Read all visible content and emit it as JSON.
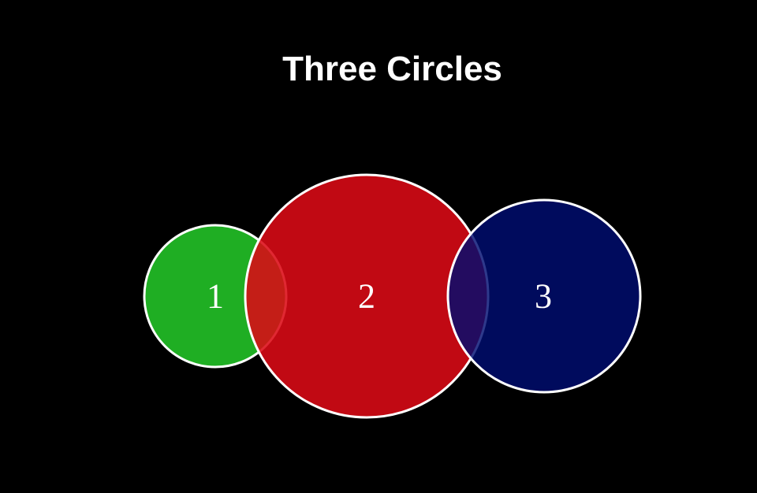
{
  "title": "Three Circles",
  "colors": {
    "background": "#000000",
    "stroke": "#ffffff",
    "text": "#ffffff"
  },
  "circles": [
    {
      "label": "1",
      "color": "#1fae23",
      "opacity": 1
    },
    {
      "label": "2",
      "color": "#dc0a16",
      "opacity": 0.88
    },
    {
      "label": "3",
      "color": "#000e72",
      "opacity": 0.82
    }
  ]
}
